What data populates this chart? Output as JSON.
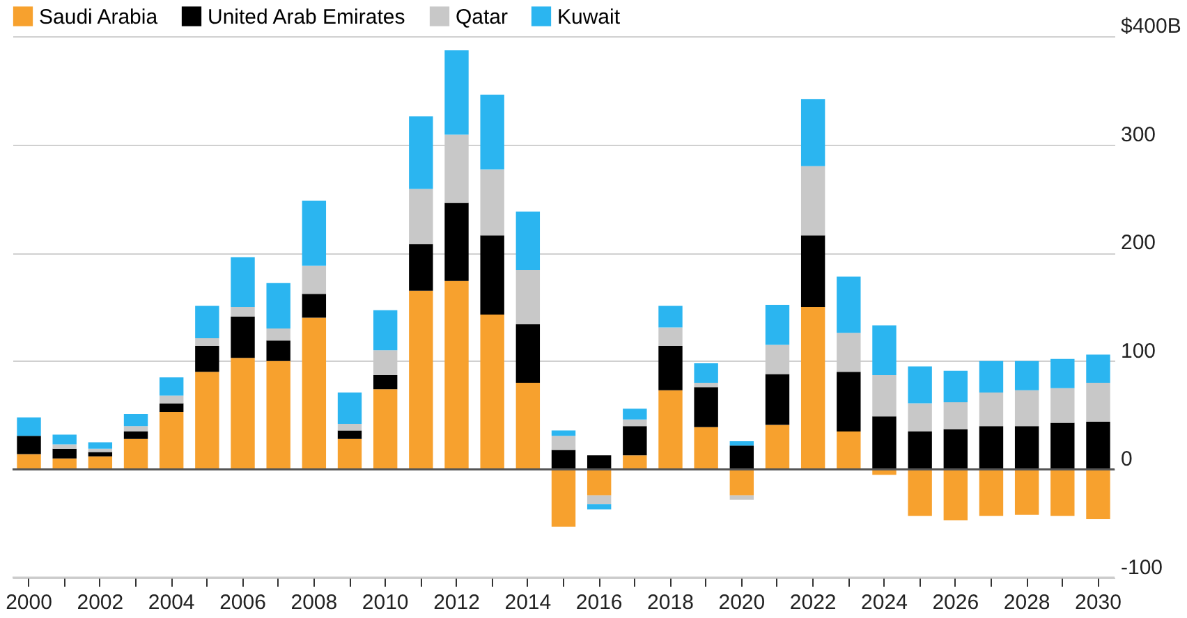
{
  "chart_data": {
    "type": "bar",
    "stacked": true,
    "categories": [
      "2000",
      null,
      "2002",
      null,
      "2004",
      null,
      "2006",
      null,
      "2008",
      null,
      "2010",
      null,
      "2012",
      null,
      "2014",
      null,
      "2016",
      null,
      "2018",
      null,
      "2020",
      null,
      "2022",
      null,
      "2024",
      null,
      "2026",
      null,
      "2028",
      null,
      "2030"
    ],
    "series": [
      {
        "name": "Saudi Arabia",
        "color": "#f7a12e",
        "values": [
          14,
          10,
          12,
          28,
          53,
          90,
          103,
          100,
          140,
          28,
          74,
          165,
          174,
          143,
          80,
          -53,
          -24,
          13,
          73,
          39,
          -24,
          41,
          150,
          35,
          -5,
          -43,
          -47,
          -43,
          -42,
          -43,
          -46
        ]
      },
      {
        "name": "United Arab Emirates",
        "color": "#000000",
        "values": [
          17,
          9,
          4,
          7,
          8,
          24,
          38,
          19,
          22,
          8,
          13,
          43,
          72,
          73,
          54,
          18,
          13,
          27,
          41,
          37,
          22,
          47,
          66,
          55,
          49,
          35,
          37,
          40,
          40,
          43,
          44
        ]
      },
      {
        "name": "Qatar",
        "color": "#c8c8c8",
        "values": [
          null,
          4,
          3,
          5,
          7,
          7,
          9,
          11,
          26,
          6,
          23,
          51,
          63,
          61,
          50,
          13,
          -8,
          6,
          17,
          4,
          -4,
          27,
          64,
          36,
          38,
          26,
          25,
          31,
          33,
          32,
          36
        ]
      },
      {
        "name": "Kuwait",
        "color": "#2bb5f0",
        "values": [
          17,
          9,
          6,
          11,
          17,
          30,
          46,
          42,
          60,
          29,
          37,
          67,
          78,
          69,
          54,
          5,
          -5,
          10,
          20,
          18,
          4,
          37,
          62,
          52,
          46,
          34,
          29,
          29,
          27,
          27,
          26
        ]
      }
    ],
    "ylim": [
      -100,
      400
    ],
    "yticks": [
      -100,
      0,
      100,
      200,
      300,
      {
        "value": 400,
        "label": "$400B"
      }
    ],
    "ref_lines": [
      {
        "axis": "y",
        "value": 0,
        "color": "#555555"
      }
    ],
    "grid": "y",
    "legend": "top left"
  }
}
